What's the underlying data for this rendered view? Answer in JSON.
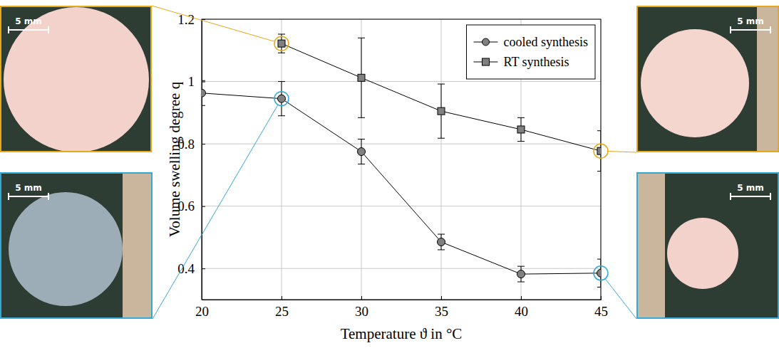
{
  "chart_data": {
    "type": "line",
    "xlabel": "Temperature ϑ in °C",
    "ylabel": "Volume swelling degree q",
    "x": [
      20,
      25,
      30,
      35,
      40,
      45
    ],
    "series": [
      {
        "name": "cooled synthesis",
        "color": "#808080",
        "marker": "circle",
        "values": [
          0.963,
          0.945,
          0.775,
          0.485,
          0.382,
          0.385
        ],
        "errors": [
          0.04,
          0.055,
          0.04,
          0.025,
          0.025,
          0.045
        ]
      },
      {
        "name": "RT synthesis",
        "color": "#808080",
        "marker": "square",
        "values": [
          null,
          1.122,
          1.012,
          0.905,
          0.846,
          0.777
        ],
        "errors": [
          null,
          0.03,
          0.128,
          0.087,
          0.038,
          0.065
        ]
      }
    ],
    "xlim": [
      20,
      45
    ],
    "xticks": [
      20,
      25,
      30,
      35,
      40,
      45
    ],
    "ylim": [
      0.3,
      1.2
    ],
    "yticks": [
      0.4,
      0.6,
      0.8,
      1,
      1.2
    ],
    "grid": true,
    "legend": "upper right",
    "annotations": [
      "5 mm",
      "5 mm",
      "5 mm",
      "5 mm"
    ]
  }
}
